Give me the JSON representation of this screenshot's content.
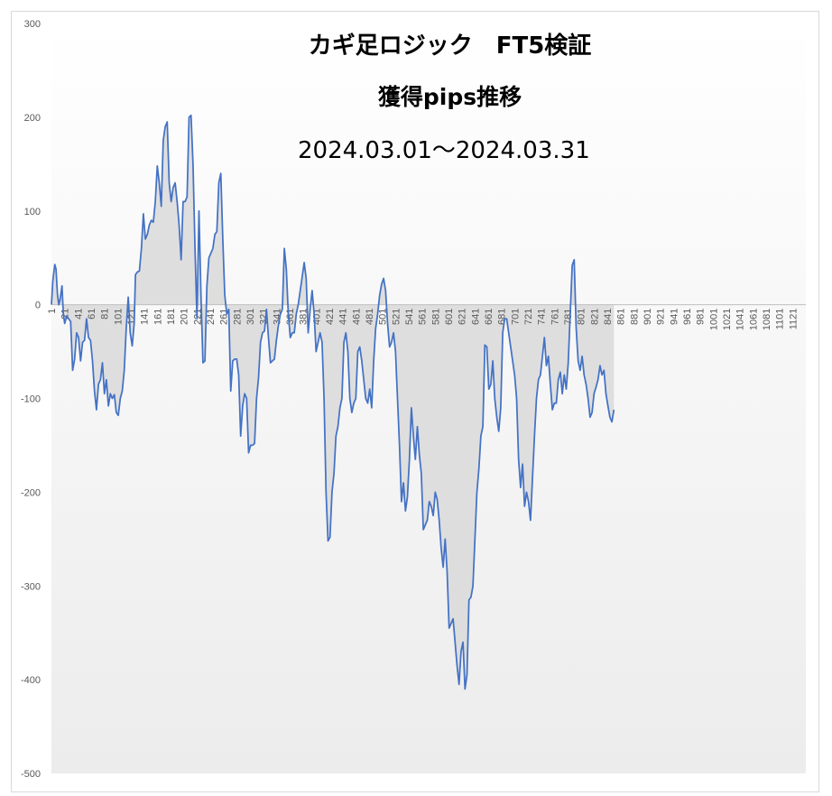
{
  "chart_data": {
    "type": "area",
    "title": "カギ足ロジック　FT5検証",
    "subtitle": "獲得pips推移",
    "period": "2024.03.01～2024.03.31",
    "xlabel": "",
    "ylabel": "",
    "ylim": [
      -500,
      300
    ],
    "xlim": [
      1,
      1141
    ],
    "y_ticks": [
      "300",
      "200",
      "100",
      "0",
      "-100",
      "-200",
      "-300",
      "-400",
      "-500"
    ],
    "x_ticks": [
      "1",
      "21",
      "41",
      "61",
      "81",
      "101",
      "121",
      "141",
      "161",
      "181",
      "201",
      "221",
      "241",
      "261",
      "281",
      "301",
      "321",
      "341",
      "361",
      "381",
      "401",
      "421",
      "441",
      "461",
      "481",
      "501",
      "521",
      "541",
      "561",
      "581",
      "601",
      "621",
      "641",
      "661",
      "681",
      "701",
      "721",
      "741",
      "761",
      "781",
      "801",
      "821",
      "841",
      "861",
      "881",
      "901",
      "921",
      "941",
      "961",
      "981",
      "1001",
      "1021",
      "1041",
      "1061",
      "1081",
      "1101",
      "1121"
    ],
    "colors": {
      "line": "#4472c4",
      "fill": "#d9d9d9"
    },
    "grid": false,
    "series": [
      {
        "points": [
          [
            1,
            0
          ],
          [
            3,
            25
          ],
          [
            6,
            43
          ],
          [
            8,
            38
          ],
          [
            10,
            12
          ],
          [
            12,
            0
          ],
          [
            14,
            5
          ],
          [
            17,
            20
          ],
          [
            19,
            -10
          ],
          [
            21,
            -20
          ],
          [
            24,
            -12
          ],
          [
            27,
            -15
          ],
          [
            30,
            -18
          ],
          [
            33,
            -70
          ],
          [
            36,
            -58
          ],
          [
            39,
            -30
          ],
          [
            42,
            -35
          ],
          [
            45,
            -60
          ],
          [
            48,
            -40
          ],
          [
            51,
            -38
          ],
          [
            54,
            -15
          ],
          [
            57,
            -35
          ],
          [
            60,
            -38
          ],
          [
            63,
            -60
          ],
          [
            66,
            -92
          ],
          [
            69,
            -112
          ],
          [
            72,
            -85
          ],
          [
            75,
            -80
          ],
          [
            78,
            -62
          ],
          [
            81,
            -95
          ],
          [
            84,
            -80
          ],
          [
            87,
            -108
          ],
          [
            90,
            -95
          ],
          [
            93,
            -100
          ],
          [
            96,
            -96
          ],
          [
            99,
            -115
          ],
          [
            102,
            -118
          ],
          [
            105,
            -100
          ],
          [
            108,
            -92
          ],
          [
            111,
            -70
          ],
          [
            114,
            -25
          ],
          [
            117,
            8
          ],
          [
            120,
            -30
          ],
          [
            123,
            -44
          ],
          [
            126,
            -20
          ],
          [
            128,
            32
          ],
          [
            131,
            35
          ],
          [
            134,
            36
          ],
          [
            137,
            60
          ],
          [
            140,
            97
          ],
          [
            143,
            70
          ],
          [
            146,
            75
          ],
          [
            149,
            85
          ],
          [
            152,
            90
          ],
          [
            155,
            88
          ],
          [
            158,
            110
          ],
          [
            161,
            148
          ],
          [
            164,
            130
          ],
          [
            167,
            105
          ],
          [
            170,
            175
          ],
          [
            173,
            190
          ],
          [
            176,
            195
          ],
          [
            179,
            130
          ],
          [
            182,
            110
          ],
          [
            185,
            125
          ],
          [
            188,
            130
          ],
          [
            191,
            110
          ],
          [
            194,
            85
          ],
          [
            197,
            48
          ],
          [
            200,
            110
          ],
          [
            203,
            110
          ],
          [
            206,
            115
          ],
          [
            209,
            200
          ],
          [
            212,
            202
          ],
          [
            215,
            150
          ],
          [
            218,
            60
          ],
          [
            221,
            -15
          ],
          [
            224,
            100
          ],
          [
            227,
            10
          ],
          [
            230,
            -62
          ],
          [
            233,
            -60
          ],
          [
            236,
            20
          ],
          [
            239,
            50
          ],
          [
            242,
            55
          ],
          [
            245,
            60
          ],
          [
            248,
            75
          ],
          [
            251,
            78
          ],
          [
            254,
            130
          ],
          [
            257,
            140
          ],
          [
            260,
            70
          ],
          [
            263,
            10
          ],
          [
            266,
            -10
          ],
          [
            269,
            -5
          ],
          [
            272,
            -92
          ],
          [
            275,
            -60
          ],
          [
            278,
            -58
          ],
          [
            281,
            -58
          ],
          [
            284,
            -75
          ],
          [
            287,
            -140
          ],
          [
            290,
            -108
          ],
          [
            293,
            -95
          ],
          [
            296,
            -100
          ],
          [
            299,
            -158
          ],
          [
            302,
            -150
          ],
          [
            305,
            -150
          ],
          [
            308,
            -148
          ],
          [
            311,
            -100
          ],
          [
            314,
            -78
          ],
          [
            317,
            -40
          ],
          [
            320,
            -30
          ],
          [
            323,
            -28
          ],
          [
            326,
            -5
          ],
          [
            329,
            -35
          ],
          [
            332,
            -62
          ],
          [
            335,
            -60
          ],
          [
            338,
            -58
          ],
          [
            341,
            -38
          ],
          [
            344,
            -22
          ],
          [
            347,
            -10
          ],
          [
            350,
            -5
          ],
          [
            353,
            60
          ],
          [
            356,
            38
          ],
          [
            359,
            -10
          ],
          [
            362,
            -35
          ],
          [
            365,
            -30
          ],
          [
            368,
            -30
          ],
          [
            371,
            -10
          ],
          [
            374,
            0
          ],
          [
            377,
            15
          ],
          [
            380,
            30
          ],
          [
            383,
            45
          ],
          [
            386,
            28
          ],
          [
            389,
            -30
          ],
          [
            392,
            -5
          ],
          [
            395,
            15
          ],
          [
            398,
            -10
          ],
          [
            401,
            -50
          ],
          [
            404,
            -40
          ],
          [
            407,
            -30
          ],
          [
            410,
            -40
          ],
          [
            413,
            -100
          ],
          [
            416,
            -200
          ],
          [
            419,
            -252
          ],
          [
            422,
            -248
          ],
          [
            425,
            -200
          ],
          [
            428,
            -180
          ],
          [
            431,
            -140
          ],
          [
            434,
            -130
          ],
          [
            437,
            -110
          ],
          [
            440,
            -100
          ],
          [
            443,
            -40
          ],
          [
            446,
            -30
          ],
          [
            449,
            -50
          ],
          [
            452,
            -100
          ],
          [
            455,
            -115
          ],
          [
            458,
            -105
          ],
          [
            461,
            -100
          ],
          [
            464,
            -50
          ],
          [
            467,
            -45
          ],
          [
            470,
            -60
          ],
          [
            473,
            -80
          ],
          [
            476,
            -100
          ],
          [
            479,
            -105
          ],
          [
            482,
            -90
          ],
          [
            485,
            -110
          ],
          [
            488,
            -60
          ],
          [
            491,
            -25
          ],
          [
            494,
            -10
          ],
          [
            497,
            10
          ],
          [
            500,
            22
          ],
          [
            503,
            28
          ],
          [
            506,
            15
          ],
          [
            509,
            -20
          ],
          [
            512,
            -45
          ],
          [
            515,
            -40
          ],
          [
            518,
            -30
          ],
          [
            521,
            -50
          ],
          [
            524,
            -100
          ],
          [
            527,
            -150
          ],
          [
            530,
            -210
          ],
          [
            533,
            -190
          ],
          [
            536,
            -220
          ],
          [
            539,
            -205
          ],
          [
            542,
            -165
          ],
          [
            545,
            -110
          ],
          [
            548,
            -140
          ],
          [
            551,
            -165
          ],
          [
            554,
            -130
          ],
          [
            557,
            -160
          ],
          [
            560,
            -180
          ],
          [
            563,
            -240
          ],
          [
            566,
            -235
          ],
          [
            569,
            -230
          ],
          [
            572,
            -210
          ],
          [
            575,
            -215
          ],
          [
            578,
            -225
          ],
          [
            581,
            -200
          ],
          [
            584,
            -208
          ],
          [
            587,
            -230
          ],
          [
            590,
            -260
          ],
          [
            593,
            -280
          ],
          [
            596,
            -250
          ],
          [
            599,
            -285
          ],
          [
            602,
            -345
          ],
          [
            605,
            -340
          ],
          [
            608,
            -335
          ],
          [
            611,
            -360
          ],
          [
            614,
            -385
          ],
          [
            617,
            -405
          ],
          [
            620,
            -370
          ],
          [
            623,
            -360
          ],
          [
            626,
            -410
          ],
          [
            629,
            -395
          ],
          [
            632,
            -315
          ],
          [
            635,
            -312
          ],
          [
            638,
            -300
          ],
          [
            641,
            -250
          ],
          [
            644,
            -200
          ],
          [
            647,
            -175
          ],
          [
            650,
            -140
          ],
          [
            653,
            -130
          ],
          [
            656,
            -43
          ],
          [
            659,
            -45
          ],
          [
            662,
            -90
          ],
          [
            665,
            -85
          ],
          [
            668,
            -60
          ],
          [
            671,
            -100
          ],
          [
            674,
            -120
          ],
          [
            677,
            -135
          ],
          [
            680,
            -110
          ],
          [
            683,
            -30
          ],
          [
            686,
            -15
          ],
          [
            689,
            -15
          ],
          [
            692,
            -30
          ],
          [
            695,
            -45
          ],
          [
            698,
            -60
          ],
          [
            701,
            -75
          ],
          [
            704,
            -100
          ],
          [
            707,
            -165
          ],
          [
            710,
            -195
          ],
          [
            713,
            -170
          ],
          [
            716,
            -215
          ],
          [
            719,
            -200
          ],
          [
            722,
            -210
          ],
          [
            725,
            -230
          ],
          [
            728,
            -185
          ],
          [
            731,
            -140
          ],
          [
            734,
            -100
          ],
          [
            737,
            -80
          ],
          [
            740,
            -75
          ],
          [
            743,
            -55
          ],
          [
            746,
            -35
          ],
          [
            749,
            -65
          ],
          [
            752,
            -55
          ],
          [
            755,
            -85
          ],
          [
            758,
            -112
          ],
          [
            761,
            -105
          ],
          [
            764,
            -105
          ],
          [
            767,
            -80
          ],
          [
            770,
            -72
          ],
          [
            773,
            -95
          ],
          [
            776,
            -75
          ],
          [
            779,
            -90
          ],
          [
            782,
            -62
          ],
          [
            785,
            -10
          ],
          [
            788,
            42
          ],
          [
            791,
            48
          ],
          [
            794,
            -25
          ],
          [
            797,
            -60
          ],
          [
            800,
            -70
          ],
          [
            803,
            -55
          ],
          [
            806,
            -75
          ],
          [
            809,
            -85
          ],
          [
            812,
            -100
          ],
          [
            815,
            -120
          ],
          [
            818,
            -115
          ],
          [
            821,
            -95
          ],
          [
            824,
            -88
          ],
          [
            827,
            -80
          ],
          [
            830,
            -65
          ],
          [
            833,
            -75
          ],
          [
            836,
            -70
          ],
          [
            839,
            -95
          ],
          [
            842,
            -108
          ],
          [
            845,
            -120
          ],
          [
            848,
            -125
          ],
          [
            851,
            -112
          ]
        ]
      }
    ]
  }
}
